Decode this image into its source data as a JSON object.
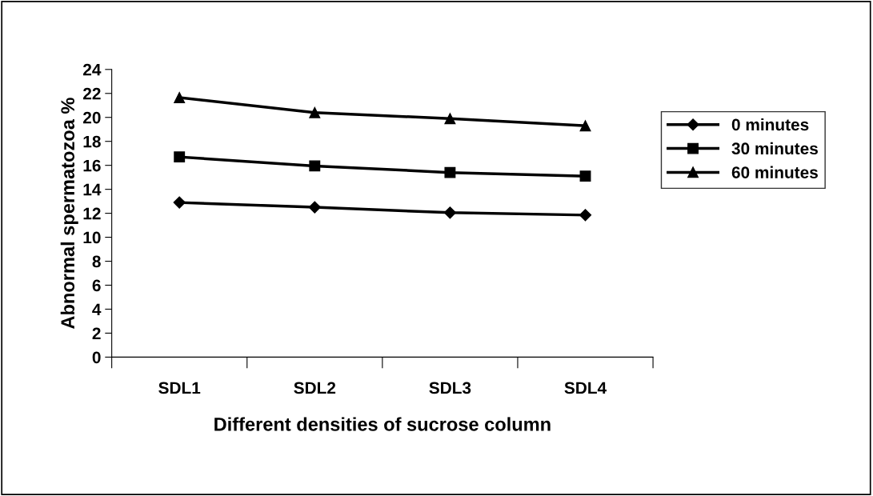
{
  "chart_data": {
    "type": "line",
    "xlabel": "Different densities of sucrose column",
    "ylabel": "Abnormal spermatozoa %",
    "categories": [
      "SDL1",
      "SDL2",
      "SDL3",
      "SDL4"
    ],
    "series": [
      {
        "name": "0 minutes",
        "color": "#000000",
        "marker": "diamond",
        "values": [
          12.9,
          12.5,
          12.05,
          11.85
        ]
      },
      {
        "name": "30 minutes",
        "color": "#000000",
        "marker": "square",
        "values": [
          16.7,
          15.95,
          15.4,
          15.1
        ]
      },
      {
        "name": "60 minutes",
        "color": "#000000",
        "marker": "triangle",
        "values": [
          21.65,
          20.4,
          19.9,
          19.3
        ]
      }
    ],
    "ylim": [
      0,
      24
    ],
    "yticks": [
      0,
      2,
      4,
      6,
      8,
      10,
      12,
      14,
      16,
      18,
      20,
      22,
      24
    ],
    "grid": false,
    "legend": "right",
    "line_style": "solid"
  }
}
